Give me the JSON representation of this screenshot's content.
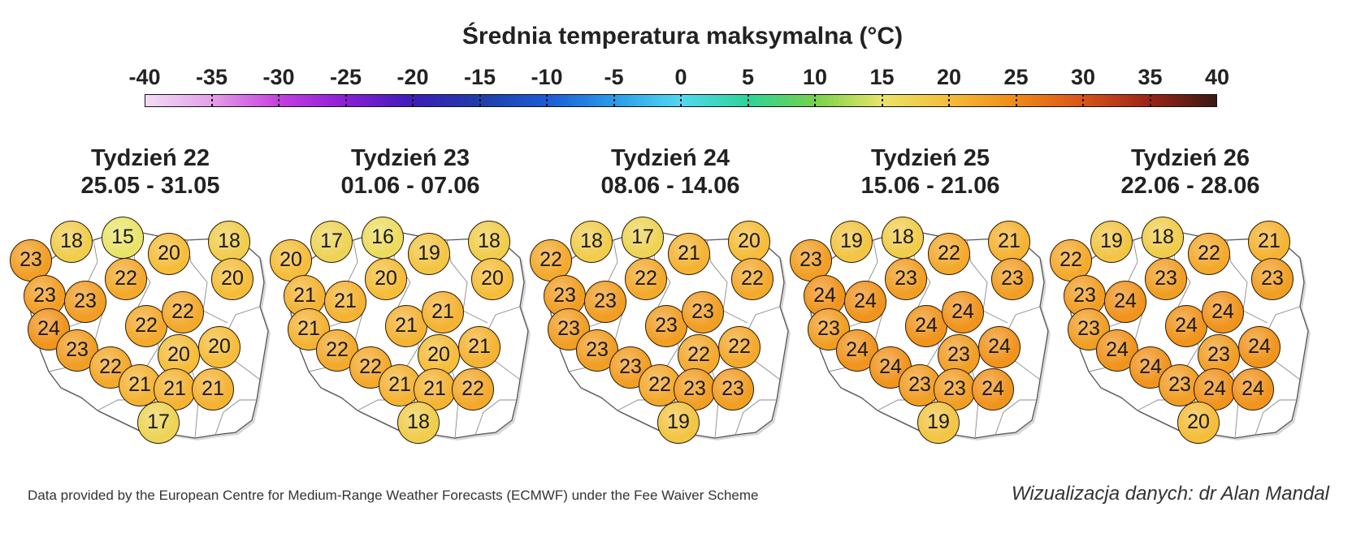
{
  "title": "Średnia temperatura maksymalna (°C)",
  "colorbar": {
    "ticks": [
      "-40",
      "-35",
      "-30",
      "-25",
      "-20",
      "-15",
      "-10",
      "-5",
      "0",
      "5",
      "10",
      "15",
      "20",
      "25",
      "30",
      "35",
      "40"
    ],
    "stops": [
      {
        "v": -40,
        "c": "#f3dcf5"
      },
      {
        "v": -35,
        "c": "#e49fe8"
      },
      {
        "v": -30,
        "c": "#c43fe0"
      },
      {
        "v": -25,
        "c": "#8a1ed6"
      },
      {
        "v": -20,
        "c": "#3d1db8"
      },
      {
        "v": -15,
        "c": "#1f3ea8"
      },
      {
        "v": -10,
        "c": "#1d5bd6"
      },
      {
        "v": -5,
        "c": "#2b9be8"
      },
      {
        "v": 0,
        "c": "#52d8f0"
      },
      {
        "v": 5,
        "c": "#2fd39a"
      },
      {
        "v": 10,
        "c": "#74d24a"
      },
      {
        "v": 15,
        "c": "#e8e46a"
      },
      {
        "v": 20,
        "c": "#f5bd3a"
      },
      {
        "v": 25,
        "c": "#ef8a16"
      },
      {
        "v": 30,
        "c": "#d9541a"
      },
      {
        "v": 35,
        "c": "#9c2418"
      },
      {
        "v": 40,
        "c": "#3a1a12"
      }
    ]
  },
  "weeks": [
    {
      "label": "Tydzień 22",
      "dates": "25.05 - 31.05",
      "values": [
        18,
        15,
        18,
        23,
        20,
        20,
        22,
        23,
        23,
        22,
        22,
        24,
        20,
        20,
        23,
        22,
        21,
        21,
        21,
        17
      ]
    },
    {
      "label": "Tydzień 23",
      "dates": "01.06 - 07.06",
      "values": [
        17,
        16,
        18,
        20,
        19,
        20,
        20,
        21,
        21,
        21,
        21,
        21,
        20,
        21,
        22,
        22,
        21,
        21,
        22,
        18
      ]
    },
    {
      "label": "Tydzień 24",
      "dates": "08.06 - 14.06",
      "values": [
        18,
        17,
        20,
        22,
        21,
        22,
        22,
        23,
        23,
        23,
        23,
        23,
        22,
        22,
        23,
        23,
        22,
        23,
        23,
        19
      ]
    },
    {
      "label": "Tydzień 25",
      "dates": "15.06 - 21.06",
      "values": [
        19,
        18,
        21,
        23,
        22,
        23,
        23,
        24,
        24,
        24,
        24,
        23,
        23,
        24,
        24,
        24,
        23,
        23,
        24,
        19
      ]
    },
    {
      "label": "Tydzień 26",
      "dates": "22.06 - 28.06",
      "values": [
        19,
        18,
        21,
        22,
        22,
        23,
        23,
        23,
        24,
        24,
        24,
        23,
        23,
        24,
        24,
        24,
        23,
        24,
        24,
        20
      ]
    }
  ],
  "footer": {
    "source": "Data provided by the European Centre for Medium-Range Weather Forecasts (ECMWF) under the Fee Waiver Scheme",
    "credit": "Wizualizacja danych: dr Alan Mandal"
  }
}
